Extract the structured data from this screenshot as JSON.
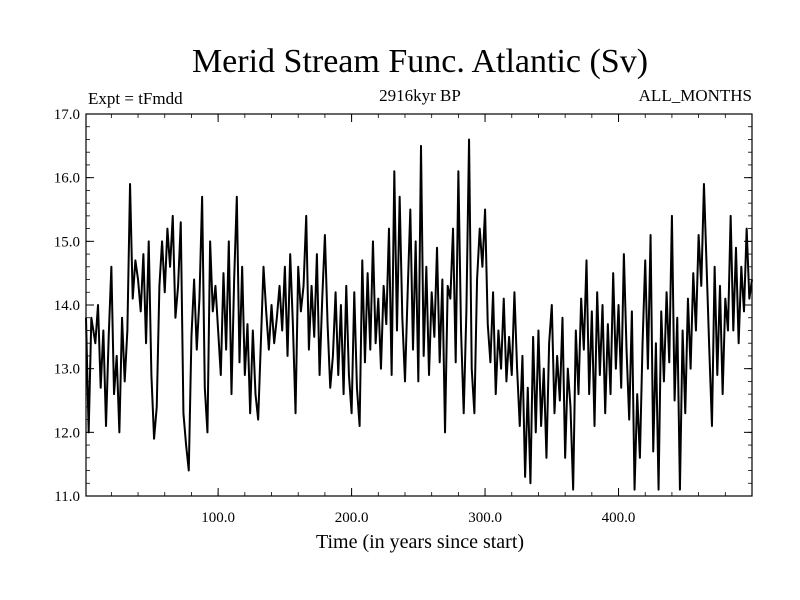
{
  "chart_data": {
    "type": "line",
    "title": "Merid Stream Func. Atlantic (Sv)",
    "left_label": "Expt = tFmdd",
    "center_label": "2916kyr BP",
    "right_label": "ALL_MONTHS",
    "xlabel": "Time (in years since start)",
    "ylabel": "",
    "xlim": [
      1,
      500
    ],
    "ylim": [
      11.0,
      17.0
    ],
    "xticks": [
      100,
      200,
      300,
      400
    ],
    "xtick_labels": [
      "100.0",
      "200.0",
      "300.0",
      "400.0"
    ],
    "yticks": [
      11,
      12,
      13,
      14,
      15,
      16,
      17
    ],
    "ytick_labels": [
      "11.0",
      "12.0",
      "13.0",
      "14.0",
      "15.0",
      "16.0",
      "17.0"
    ],
    "series": [
      {
        "name": "Merid Stream Func. Atlantic",
        "color": "#000000",
        "anchors": [
          [
            1,
            13.8
          ],
          [
            3,
            12.0
          ],
          [
            5,
            13.8
          ],
          [
            8,
            13.4
          ],
          [
            10,
            14.0
          ],
          [
            12,
            12.7
          ],
          [
            14,
            13.6
          ],
          [
            16,
            12.1
          ],
          [
            18,
            13.5
          ],
          [
            20,
            14.6
          ],
          [
            22,
            12.6
          ],
          [
            24,
            13.2
          ],
          [
            26,
            12.0
          ],
          [
            28,
            13.8
          ],
          [
            30,
            12.8
          ],
          [
            32,
            13.6
          ],
          [
            34,
            15.9
          ],
          [
            36,
            14.1
          ],
          [
            38,
            14.7
          ],
          [
            40,
            14.4
          ],
          [
            42,
            13.9
          ],
          [
            44,
            14.8
          ],
          [
            46,
            13.4
          ],
          [
            48,
            15.0
          ],
          [
            50,
            12.9
          ],
          [
            52,
            11.9
          ],
          [
            54,
            12.4
          ],
          [
            56,
            14.3
          ],
          [
            58,
            15.0
          ],
          [
            60,
            14.2
          ],
          [
            62,
            15.2
          ],
          [
            64,
            14.6
          ],
          [
            66,
            15.4
          ],
          [
            68,
            13.8
          ],
          [
            70,
            14.3
          ],
          [
            72,
            15.3
          ],
          [
            74,
            12.3
          ],
          [
            76,
            11.8
          ],
          [
            78,
            11.4
          ],
          [
            80,
            13.5
          ],
          [
            82,
            14.4
          ],
          [
            84,
            13.3
          ],
          [
            86,
            14.1
          ],
          [
            88,
            15.7
          ],
          [
            90,
            12.7
          ],
          [
            92,
            12.0
          ],
          [
            94,
            15.0
          ],
          [
            96,
            13.9
          ],
          [
            98,
            14.3
          ],
          [
            100,
            13.6
          ],
          [
            102,
            12.9
          ],
          [
            104,
            14.5
          ],
          [
            106,
            13.3
          ],
          [
            108,
            15.0
          ],
          [
            110,
            12.6
          ],
          [
            112,
            14.4
          ],
          [
            114,
            15.7
          ],
          [
            116,
            13.1
          ],
          [
            118,
            14.6
          ],
          [
            120,
            12.9
          ],
          [
            122,
            13.7
          ],
          [
            124,
            12.3
          ],
          [
            126,
            13.6
          ],
          [
            128,
            12.6
          ],
          [
            130,
            12.2
          ],
          [
            132,
            13.4
          ],
          [
            134,
            14.6
          ],
          [
            136,
            13.9
          ],
          [
            138,
            13.3
          ],
          [
            140,
            14.0
          ],
          [
            142,
            13.4
          ],
          [
            144,
            13.8
          ],
          [
            146,
            14.3
          ],
          [
            148,
            13.6
          ],
          [
            150,
            14.6
          ],
          [
            152,
            13.2
          ],
          [
            154,
            14.8
          ],
          [
            156,
            13.7
          ],
          [
            158,
            12.3
          ],
          [
            160,
            14.6
          ],
          [
            162,
            13.9
          ],
          [
            164,
            14.3
          ],
          [
            166,
            15.4
          ],
          [
            168,
            13.3
          ],
          [
            170,
            14.3
          ],
          [
            172,
            13.5
          ],
          [
            174,
            14.8
          ],
          [
            176,
            12.9
          ],
          [
            178,
            14.1
          ],
          [
            180,
            15.1
          ],
          [
            182,
            13.7
          ],
          [
            184,
            12.7
          ],
          [
            186,
            13.2
          ],
          [
            188,
            14.2
          ],
          [
            190,
            12.9
          ],
          [
            192,
            14.0
          ],
          [
            194,
            12.6
          ],
          [
            196,
            14.3
          ],
          [
            198,
            12.9
          ],
          [
            200,
            12.3
          ],
          [
            202,
            14.2
          ],
          [
            204,
            12.7
          ],
          [
            206,
            12.1
          ],
          [
            208,
            14.7
          ],
          [
            210,
            13.1
          ],
          [
            212,
            14.5
          ],
          [
            214,
            13.3
          ],
          [
            216,
            15.0
          ],
          [
            218,
            13.4
          ],
          [
            220,
            14.1
          ],
          [
            222,
            13.0
          ],
          [
            224,
            14.3
          ],
          [
            226,
            13.7
          ],
          [
            228,
            15.2
          ],
          [
            230,
            12.9
          ],
          [
            232,
            16.1
          ],
          [
            234,
            13.6
          ],
          [
            236,
            15.7
          ],
          [
            238,
            13.8
          ],
          [
            240,
            12.8
          ],
          [
            242,
            14.2
          ],
          [
            244,
            15.5
          ],
          [
            246,
            13.3
          ],
          [
            248,
            15.0
          ],
          [
            250,
            12.8
          ],
          [
            252,
            16.5
          ],
          [
            254,
            13.2
          ],
          [
            256,
            14.6
          ],
          [
            258,
            12.9
          ],
          [
            260,
            14.2
          ],
          [
            262,
            13.5
          ],
          [
            264,
            14.9
          ],
          [
            266,
            13.1
          ],
          [
            268,
            14.4
          ],
          [
            270,
            12.0
          ],
          [
            272,
            14.3
          ],
          [
            274,
            14.1
          ],
          [
            276,
            15.2
          ],
          [
            278,
            13.1
          ],
          [
            280,
            16.1
          ],
          [
            282,
            13.6
          ],
          [
            284,
            12.3
          ],
          [
            286,
            13.9
          ],
          [
            288,
            16.6
          ],
          [
            290,
            13.0
          ],
          [
            292,
            12.3
          ],
          [
            294,
            14.4
          ],
          [
            296,
            15.2
          ],
          [
            298,
            14.6
          ],
          [
            300,
            15.5
          ],
          [
            302,
            13.7
          ],
          [
            304,
            13.1
          ],
          [
            306,
            14.2
          ],
          [
            308,
            12.6
          ],
          [
            310,
            13.6
          ],
          [
            312,
            13.0
          ],
          [
            314,
            14.1
          ],
          [
            316,
            12.8
          ],
          [
            318,
            13.5
          ],
          [
            320,
            12.9
          ],
          [
            322,
            14.2
          ],
          [
            324,
            13.0
          ],
          [
            326,
            12.1
          ],
          [
            328,
            13.2
          ],
          [
            330,
            11.3
          ],
          [
            332,
            12.7
          ],
          [
            334,
            11.2
          ],
          [
            336,
            13.5
          ],
          [
            338,
            12.0
          ],
          [
            340,
            13.6
          ],
          [
            342,
            12.1
          ],
          [
            344,
            13.0
          ],
          [
            346,
            11.6
          ],
          [
            348,
            13.4
          ],
          [
            350,
            14.0
          ],
          [
            352,
            12.3
          ],
          [
            354,
            13.2
          ],
          [
            356,
            12.5
          ],
          [
            358,
            13.8
          ],
          [
            360,
            11.6
          ],
          [
            362,
            13.0
          ],
          [
            364,
            12.4
          ],
          [
            366,
            11.1
          ],
          [
            368,
            13.6
          ],
          [
            370,
            12.6
          ],
          [
            372,
            14.1
          ],
          [
            374,
            13.3
          ],
          [
            376,
            14.7
          ],
          [
            378,
            12.6
          ],
          [
            380,
            13.9
          ],
          [
            382,
            12.1
          ],
          [
            384,
            14.2
          ],
          [
            386,
            12.9
          ],
          [
            388,
            14.0
          ],
          [
            390,
            12.3
          ],
          [
            392,
            13.7
          ],
          [
            394,
            12.6
          ],
          [
            396,
            14.5
          ],
          [
            398,
            13.0
          ],
          [
            400,
            14.0
          ],
          [
            402,
            12.7
          ],
          [
            404,
            14.8
          ],
          [
            406,
            13.3
          ],
          [
            408,
            12.2
          ],
          [
            410,
            13.9
          ],
          [
            412,
            11.1
          ],
          [
            414,
            12.6
          ],
          [
            416,
            11.6
          ],
          [
            418,
            13.4
          ],
          [
            420,
            14.7
          ],
          [
            422,
            13.0
          ],
          [
            424,
            15.1
          ],
          [
            426,
            11.7
          ],
          [
            428,
            13.4
          ],
          [
            430,
            11.1
          ],
          [
            432,
            13.9
          ],
          [
            434,
            12.8
          ],
          [
            436,
            14.2
          ],
          [
            438,
            13.1
          ],
          [
            440,
            15.4
          ],
          [
            442,
            12.5
          ],
          [
            444,
            13.8
          ],
          [
            446,
            11.1
          ],
          [
            448,
            13.6
          ],
          [
            450,
            12.3
          ],
          [
            452,
            14.1
          ],
          [
            454,
            13.0
          ],
          [
            456,
            14.5
          ],
          [
            458,
            13.6
          ],
          [
            460,
            15.1
          ],
          [
            462,
            14.3
          ],
          [
            464,
            15.9
          ],
          [
            466,
            14.6
          ],
          [
            468,
            13.3
          ],
          [
            470,
            12.1
          ],
          [
            472,
            14.6
          ],
          [
            474,
            12.9
          ],
          [
            476,
            14.3
          ],
          [
            478,
            12.6
          ],
          [
            480,
            14.1
          ],
          [
            482,
            13.6
          ],
          [
            484,
            15.4
          ],
          [
            486,
            13.6
          ],
          [
            488,
            14.9
          ],
          [
            490,
            13.4
          ],
          [
            492,
            14.6
          ],
          [
            494,
            13.9
          ],
          [
            496,
            15.2
          ],
          [
            498,
            14.1
          ],
          [
            500,
            14.4
          ]
        ]
      }
    ]
  }
}
